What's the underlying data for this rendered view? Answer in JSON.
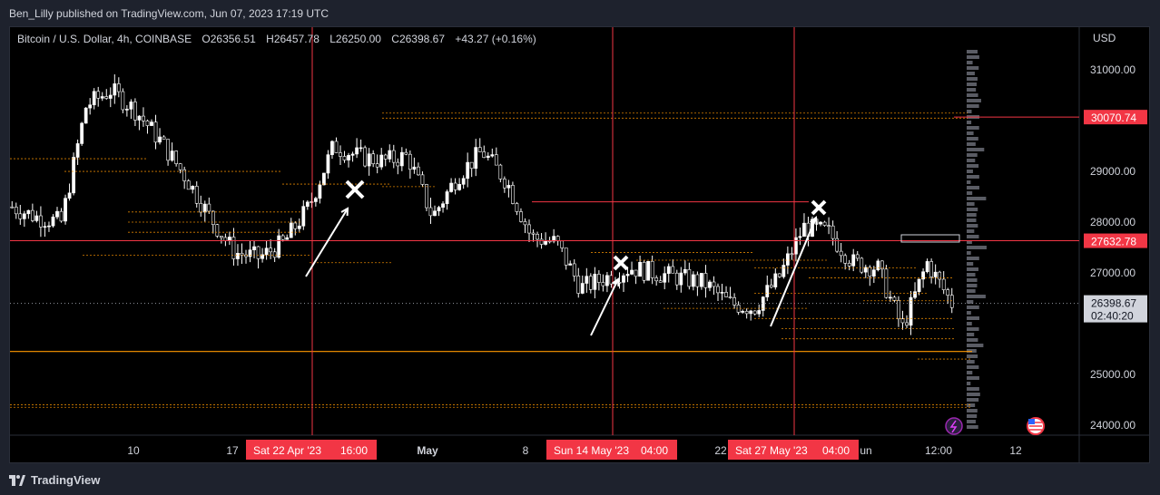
{
  "header": {
    "publisher_text": "Ben_Lilly published on TradingView.com, Jun 07, 2023 17:19 UTC"
  },
  "symbol_bar": {
    "symbol": "Bitcoin / U.S. Dollar, 4h, COINBASE",
    "open": "O26356.51",
    "high": "H26457.78",
    "low": "L26250.00",
    "close": "C26398.67",
    "change": "+43.27 (+0.16%)"
  },
  "price_axis": {
    "currency": "USD",
    "ticks": [
      "31000.00",
      "29000.00",
      "28000.00",
      "27000.00",
      "25000.00",
      "24000.00"
    ],
    "highlight_labels": [
      "30070.74",
      "27632.78"
    ],
    "current_price": "26398.67",
    "countdown": "02:40:20"
  },
  "time_axis": {
    "ticks": [
      "10",
      "17",
      "May",
      "8",
      "22",
      "un",
      "12:00",
      "12"
    ],
    "highlighted": [
      {
        "date": "Sat 22 Apr '23",
        "time": "16:00"
      },
      {
        "date": "Sun 14 May '23",
        "time": "04:00"
      },
      {
        "date": "Sat 27 May '23",
        "time": "04:00"
      }
    ]
  },
  "footer": {
    "brand": "TradingView"
  },
  "colors": {
    "background": "#000000",
    "frame": "#1e222d",
    "candles": "#ffffff",
    "levels": "#ff9800",
    "red_marker": "#f23645",
    "current_price_line": "#9598a1"
  },
  "icons": [
    "tradingview-logo-icon",
    "lightning-icon",
    "us-flag-icon",
    "cross-marker-icon",
    "arrow-icon"
  ],
  "chart_data": {
    "type": "candlestick",
    "title": "Bitcoin / U.S. Dollar, 4h, COINBASE",
    "ylim": [
      23800,
      31700
    ],
    "x": [
      "Apr 05",
      "Apr 08",
      "Apr 10",
      "Apr 12",
      "Apr 14",
      "Apr 16",
      "Apr 17",
      "Apr 19",
      "Apr 20",
      "Apr 21",
      "Apr 22",
      "Apr 23",
      "Apr 25",
      "Apr 26",
      "Apr 27",
      "Apr 28",
      "Apr 30",
      "May 01",
      "May 03",
      "May 05",
      "May 06",
      "May 08",
      "May 10",
      "May 12",
      "May 14",
      "May 16",
      "May 18",
      "May 20",
      "May 22",
      "May 24",
      "May 25",
      "May 27",
      "May 29",
      "May 31",
      "Jun 02",
      "Jun 04",
      "Jun 05",
      "Jun 06",
      "Jun 07"
    ],
    "close": [
      28300,
      28100,
      28000,
      30300,
      30600,
      30200,
      29600,
      28900,
      28100,
      27400,
      27300,
      27600,
      28300,
      29500,
      29300,
      29200,
      29300,
      28100,
      28900,
      29400,
      28800,
      27700,
      27600,
      26700,
      26900,
      27100,
      27000,
      26900,
      26800,
      26400,
      26300,
      26900,
      27900,
      27800,
      27200,
      27100,
      25900,
      27200,
      26398.67
    ],
    "horizontal_levels": [
      30070.74,
      27632.78,
      25450
    ],
    "current_price": 26398.67,
    "highlighted_times": [
      "Sat 22 Apr '23 16:00",
      "Sun 14 May '23 04:00",
      "Sat 27 May '23 04:00"
    ]
  }
}
